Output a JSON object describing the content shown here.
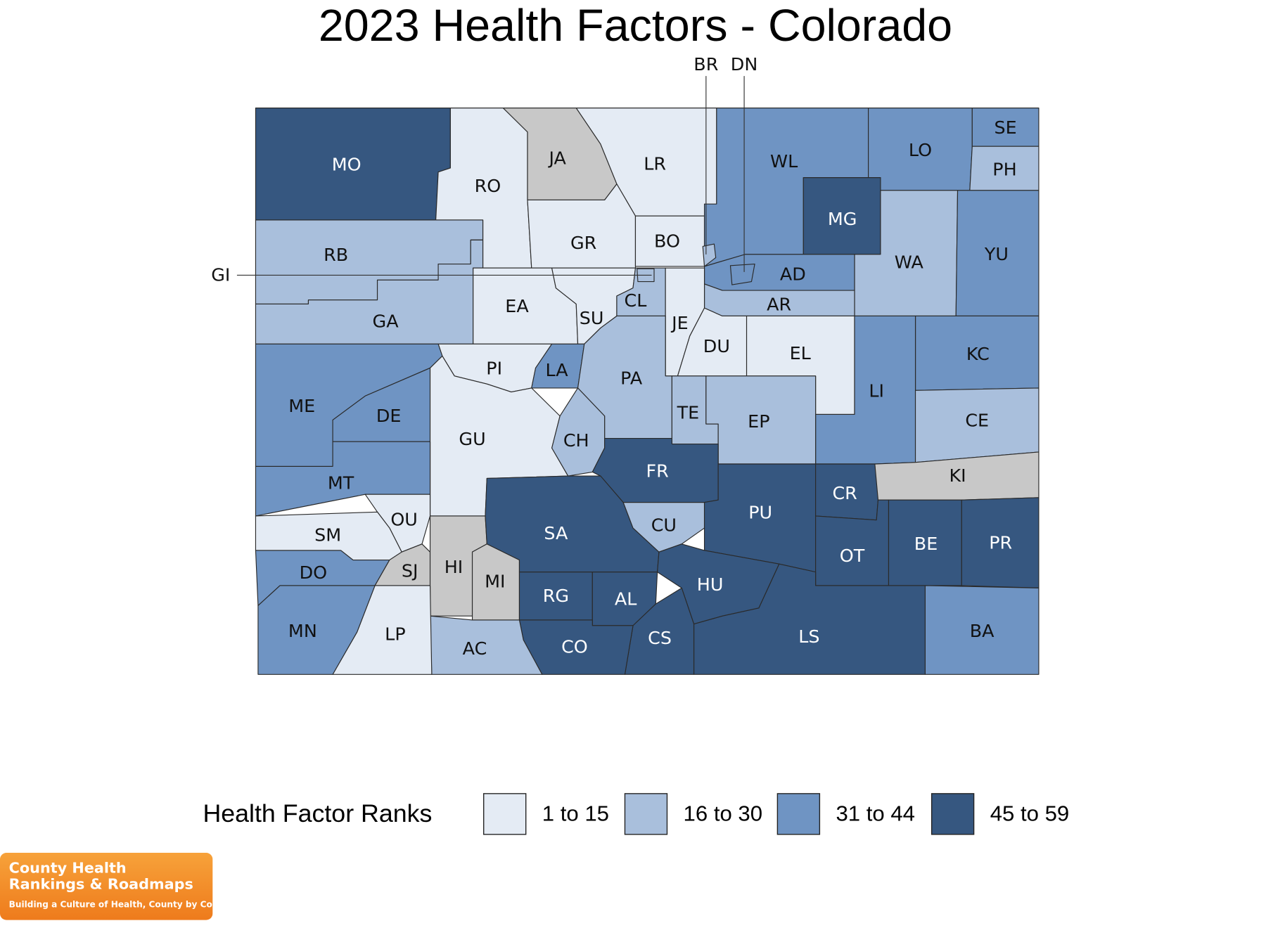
{
  "title": "2023 Health Factors - Colorado",
  "counties": [
    {
      "label": "MO",
      "color": "#365780"
    },
    {
      "label": "RO",
      "color": "#e4ebf4"
    },
    {
      "label": "JA",
      "color": "#c8c8c8"
    },
    {
      "label": "LR",
      "color": "#e4ebf4"
    },
    {
      "label": "GR",
      "color": "#e4ebf4"
    },
    {
      "label": "BO",
      "color": "#e4ebf4"
    },
    {
      "label": "WL",
      "color": "#6f94c3"
    },
    {
      "label": "LO",
      "color": "#6f94c3"
    },
    {
      "label": "SE",
      "color": "#6f94c3"
    },
    {
      "label": "PH",
      "color": "#a9bfdc"
    },
    {
      "label": "MG",
      "color": "#365780"
    },
    {
      "label": "WA",
      "color": "#a9bfdc"
    },
    {
      "label": "YU",
      "color": "#6f94c3"
    },
    {
      "label": "AD",
      "color": "#6f94c3"
    },
    {
      "label": "AR",
      "color": "#a9bfdc"
    },
    {
      "label": "RB",
      "color": "#a9bfdc"
    },
    {
      "label": "GA",
      "color": "#a9bfdc"
    },
    {
      "label": "EA",
      "color": "#e4ebf4"
    },
    {
      "label": "SU",
      "color": "#e4ebf4"
    },
    {
      "label": "CL",
      "color": "#a9bfdc"
    },
    {
      "label": "JE",
      "color": "#e4ebf4"
    },
    {
      "label": "DU",
      "color": "#e4ebf4"
    },
    {
      "label": "EL",
      "color": "#e4ebf4"
    },
    {
      "label": "KC",
      "color": "#6f94c3"
    },
    {
      "label": "LI",
      "color": "#6f94c3"
    },
    {
      "label": "CE",
      "color": "#a9bfdc"
    },
    {
      "label": "KI",
      "color": "#c8c8c8"
    },
    {
      "label": "PI",
      "color": "#e4ebf4"
    },
    {
      "label": "LA",
      "color": "#6f94c3"
    },
    {
      "label": "PA",
      "color": "#a9bfdc"
    },
    {
      "label": "TE",
      "color": "#a9bfdc"
    },
    {
      "label": "EP",
      "color": "#a9bfdc"
    },
    {
      "label": "ME",
      "color": "#6f94c3"
    },
    {
      "label": "DE",
      "color": "#6f94c3"
    },
    {
      "label": "GU",
      "color": "#e4ebf4"
    },
    {
      "label": "CH",
      "color": "#a9bfdc"
    },
    {
      "label": "FR",
      "color": "#365780"
    },
    {
      "label": "MT",
      "color": "#6f94c3"
    },
    {
      "label": "OU",
      "color": "#e4ebf4"
    },
    {
      "label": "SM",
      "color": "#e4ebf4"
    },
    {
      "label": "DO",
      "color": "#6f94c3"
    },
    {
      "label": "SJ",
      "color": "#c8c8c8"
    },
    {
      "label": "HI",
      "color": "#c8c8c8"
    },
    {
      "label": "MI",
      "color": "#c8c8c8"
    },
    {
      "label": "SA",
      "color": "#365780"
    },
    {
      "label": "CU",
      "color": "#a9bfdc"
    },
    {
      "label": "PU",
      "color": "#365780"
    },
    {
      "label": "CR",
      "color": "#365780"
    },
    {
      "label": "OT",
      "color": "#365780"
    },
    {
      "label": "BE",
      "color": "#365780"
    },
    {
      "label": "PR",
      "color": "#365780"
    },
    {
      "label": "BA",
      "color": "#6f94c3"
    },
    {
      "label": "LS",
      "color": "#365780"
    },
    {
      "label": "HU",
      "color": "#365780"
    },
    {
      "label": "RG",
      "color": "#365780"
    },
    {
      "label": "AL",
      "color": "#365780"
    },
    {
      "label": "CS",
      "color": "#365780"
    },
    {
      "label": "CO",
      "color": "#365780"
    },
    {
      "label": "AC",
      "color": "#a9bfdc"
    },
    {
      "label": "LP",
      "color": "#e4ebf4"
    },
    {
      "label": "MN",
      "color": "#6f94c3"
    },
    {
      "label": "BR",
      "color": "#a9bfdc"
    },
    {
      "label": "DN",
      "color": "#6f94c3"
    },
    {
      "label": "GI",
      "color": "#a9bfdc"
    }
  ],
  "legend": {
    "title": "Health Factor Ranks",
    "items": [
      {
        "label": "1 to 15",
        "color": "#e4ebf4"
      },
      {
        "label": "16 to 30",
        "color": "#a9bfdc"
      },
      {
        "label": "31 to 44",
        "color": "#6f94c3"
      },
      {
        "label": "45 to 59",
        "color": "#365780"
      }
    ]
  },
  "logo": {
    "lines": [
      "County Health",
      "Rankings & Roadmaps",
      "Building a Culture of Health, County by County"
    ]
  }
}
